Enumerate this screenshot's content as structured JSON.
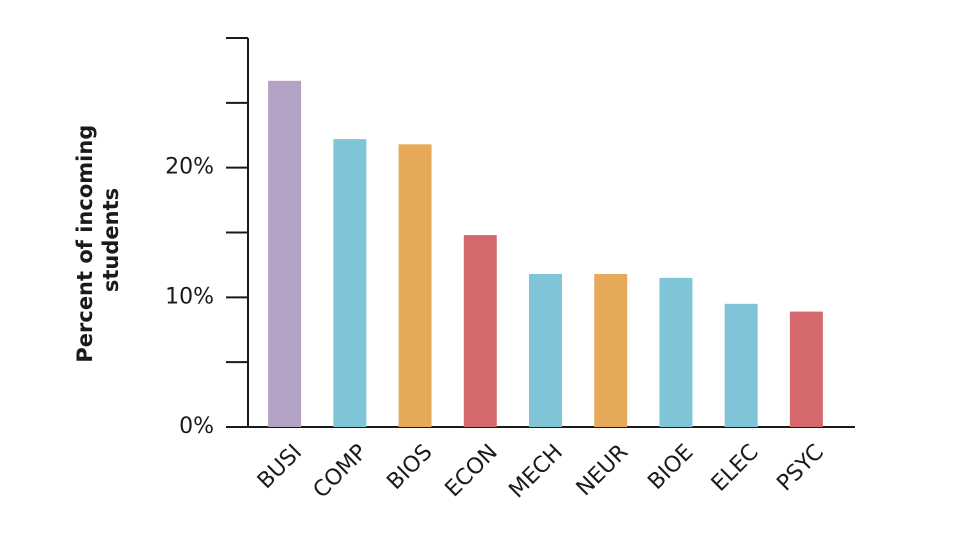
{
  "chart_data": {
    "type": "bar",
    "y_label": [
      "Percent of incoming",
      "students"
    ],
    "categories": [
      "BUSI",
      "COMP",
      "BIOS",
      "ECON",
      "MECH",
      "NEUR",
      "BIOE",
      "ELEC",
      "PSYC"
    ],
    "values": [
      26.7,
      22.2,
      21.8,
      14.8,
      11.8,
      11.8,
      11.5,
      9.5,
      8.9
    ],
    "colors": [
      "#b3a2c4",
      "#80c4d7",
      "#e6a95a",
      "#d4686c",
      "#80c4d7",
      "#e6a95a",
      "#80c4d7",
      "#80c4d7",
      "#d4686c"
    ],
    "ylim": [
      0,
      30
    ],
    "yticks": [
      {
        "value": 0,
        "label": "0%"
      },
      {
        "value": 10,
        "label": "10%"
      },
      {
        "value": 20,
        "label": "20%"
      }
    ],
    "minor_yticks": [
      5,
      15,
      25,
      30
    ],
    "grid": false
  }
}
